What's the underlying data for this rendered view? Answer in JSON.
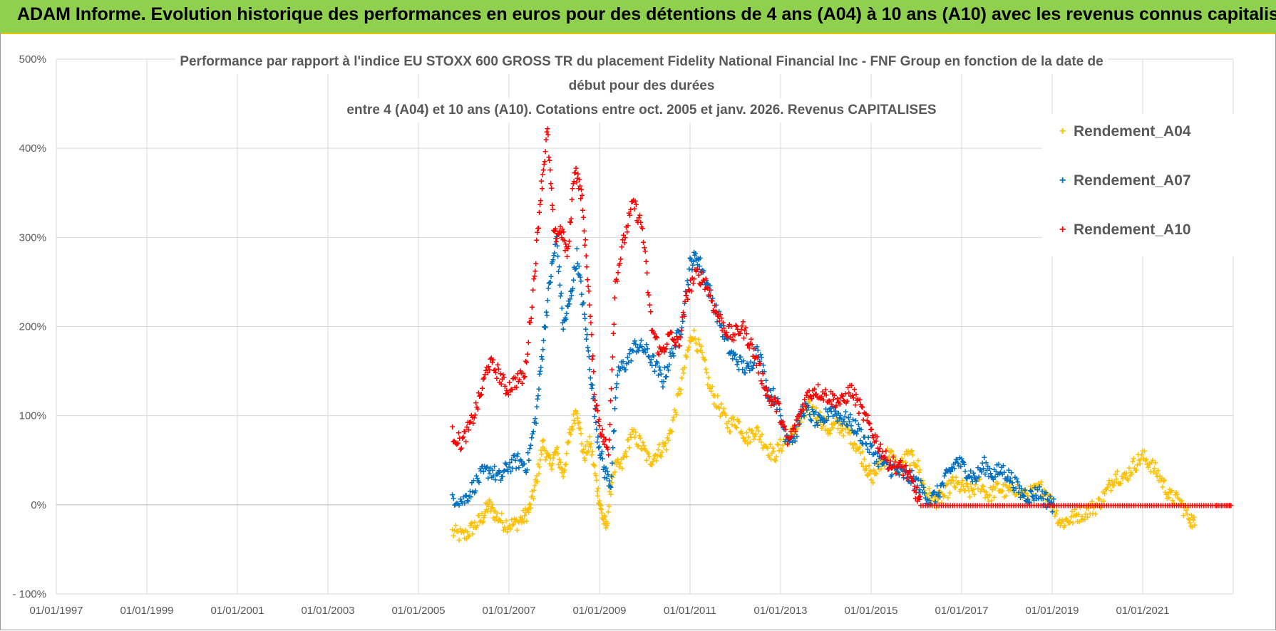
{
  "header": {
    "title": "ADAM Informe. Evolution historique des performances en euros pour des détentions de 4 ans (A04) à 10 ans (A10) avec les revenus connus capitalisés"
  },
  "chart_data": {
    "type": "scatter",
    "title_lines": [
      "Performance par rapport à l'indice EU STOXX 600 GROSS TR  du placement Fidelity National Financial Inc - FNF Group en fonction de la date de",
      "début pour des durées",
      "entre 4 (A04) et 10 ans (A10). Cotations entre oct. 2005 et janv. 2026. Revenus CAPITALISES"
    ],
    "xlabel": "",
    "ylabel": "",
    "xlim": [
      1997.0,
      2023.0
    ],
    "ylim": [
      -100,
      500
    ],
    "x_ticks": [
      "01/01/1997",
      "01/01/1999",
      "01/01/2001",
      "01/01/2003",
      "01/01/2005",
      "01/01/2007",
      "01/01/2009",
      "01/01/2011",
      "01/01/2013",
      "01/01/2015",
      "01/01/2017",
      "01/01/2019",
      "01/01/2021"
    ],
    "x_tick_years": [
      1997,
      1999,
      2001,
      2003,
      2005,
      2007,
      2009,
      2011,
      2013,
      2015,
      2017,
      2019,
      2021
    ],
    "y_ticks": [
      "- 100%",
      "0%",
      "100%",
      "200%",
      "300%",
      "400%",
      "500%"
    ],
    "y_tick_values": [
      -100,
      0,
      100,
      200,
      300,
      400,
      500
    ],
    "marker": "+",
    "legend_position": "top-right",
    "series": [
      {
        "name": "Rendement_A04",
        "color": "#ffc000",
        "points": [
          [
            2005.75,
            -30
          ],
          [
            2006.0,
            -35
          ],
          [
            2006.2,
            -25
          ],
          [
            2006.4,
            -15
          ],
          [
            2006.55,
            0
          ],
          [
            2006.7,
            -10
          ],
          [
            2006.9,
            -20
          ],
          [
            2007.1,
            -22
          ],
          [
            2007.3,
            -15
          ],
          [
            2007.45,
            -5
          ],
          [
            2007.6,
            25
          ],
          [
            2007.75,
            70
          ],
          [
            2007.9,
            45
          ],
          [
            2008.05,
            60
          ],
          [
            2008.2,
            35
          ],
          [
            2008.35,
            80
          ],
          [
            2008.5,
            110
          ],
          [
            2008.65,
            55
          ],
          [
            2008.8,
            70
          ],
          [
            2008.95,
            20
          ],
          [
            2009.05,
            -10
          ],
          [
            2009.15,
            -25
          ],
          [
            2009.3,
            40
          ],
          [
            2009.5,
            45
          ],
          [
            2009.7,
            80
          ],
          [
            2009.9,
            70
          ],
          [
            2010.1,
            50
          ],
          [
            2010.3,
            60
          ],
          [
            2010.5,
            70
          ],
          [
            2010.7,
            110
          ],
          [
            2010.9,
            160
          ],
          [
            2011.05,
            195
          ],
          [
            2011.25,
            170
          ],
          [
            2011.45,
            130
          ],
          [
            2011.65,
            110
          ],
          [
            2011.85,
            90
          ],
          [
            2012.05,
            95
          ],
          [
            2012.25,
            75
          ],
          [
            2012.45,
            85
          ],
          [
            2012.65,
            70
          ],
          [
            2012.85,
            55
          ],
          [
            2013.05,
            70
          ],
          [
            2013.25,
            80
          ],
          [
            2013.45,
            95
          ],
          [
            2013.65,
            110
          ],
          [
            2013.85,
            100
          ],
          [
            2014.05,
            85
          ],
          [
            2014.25,
            90
          ],
          [
            2014.45,
            85
          ],
          [
            2014.65,
            70
          ],
          [
            2014.85,
            50
          ],
          [
            2015.0,
            30
          ],
          [
            2015.2,
            45
          ],
          [
            2015.4,
            60
          ],
          [
            2015.6,
            40
          ],
          [
            2015.8,
            55
          ],
          [
            2016.0,
            50
          ],
          [
            2016.2,
            15
          ],
          [
            2016.4,
            5
          ],
          [
            2016.6,
            10
          ],
          [
            2016.8,
            25
          ],
          [
            2017.0,
            20
          ],
          [
            2017.2,
            15
          ],
          [
            2017.4,
            25
          ],
          [
            2017.6,
            10
          ],
          [
            2017.8,
            20
          ],
          [
            2018.0,
            15
          ],
          [
            2018.2,
            20
          ],
          [
            2018.4,
            10
          ],
          [
            2018.6,
            15
          ],
          [
            2018.8,
            20
          ],
          [
            2019.0,
            0
          ],
          [
            2019.2,
            -20
          ],
          [
            2019.4,
            -15
          ],
          [
            2019.6,
            -10
          ],
          [
            2019.8,
            -5
          ],
          [
            2020.0,
            0
          ],
          [
            2020.2,
            15
          ],
          [
            2020.4,
            35
          ],
          [
            2020.6,
            30
          ],
          [
            2020.8,
            45
          ],
          [
            2021.0,
            55
          ],
          [
            2021.2,
            45
          ],
          [
            2021.4,
            30
          ],
          [
            2021.6,
            10
          ],
          [
            2021.8,
            5
          ],
          [
            2022.0,
            -10
          ],
          [
            2022.15,
            -22
          ]
        ]
      },
      {
        "name": "Rendement_A07",
        "color": "#0070c0",
        "points": [
          [
            2005.75,
            10
          ],
          [
            2006.0,
            5
          ],
          [
            2006.2,
            20
          ],
          [
            2006.4,
            35
          ],
          [
            2006.6,
            40
          ],
          [
            2006.8,
            30
          ],
          [
            2007.0,
            45
          ],
          [
            2007.2,
            50
          ],
          [
            2007.4,
            45
          ],
          [
            2007.6,
            100
          ],
          [
            2007.75,
            180
          ],
          [
            2007.9,
            250
          ],
          [
            2008.05,
            300
          ],
          [
            2008.2,
            200
          ],
          [
            2008.35,
            230
          ],
          [
            2008.5,
            280
          ],
          [
            2008.65,
            220
          ],
          [
            2008.8,
            150
          ],
          [
            2008.95,
            80
          ],
          [
            2009.1,
            40
          ],
          [
            2009.25,
            25
          ],
          [
            2009.4,
            150
          ],
          [
            2009.6,
            160
          ],
          [
            2009.8,
            180
          ],
          [
            2010.0,
            175
          ],
          [
            2010.2,
            160
          ],
          [
            2010.4,
            140
          ],
          [
            2010.6,
            170
          ],
          [
            2010.8,
            200
          ],
          [
            2011.0,
            270
          ],
          [
            2011.15,
            280
          ],
          [
            2011.3,
            260
          ],
          [
            2011.5,
            230
          ],
          [
            2011.7,
            200
          ],
          [
            2011.9,
            170
          ],
          [
            2012.1,
            160
          ],
          [
            2012.3,
            150
          ],
          [
            2012.5,
            180
          ],
          [
            2012.7,
            130
          ],
          [
            2012.9,
            120
          ],
          [
            2013.1,
            80
          ],
          [
            2013.3,
            75
          ],
          [
            2013.5,
            110
          ],
          [
            2013.7,
            100
          ],
          [
            2013.9,
            90
          ],
          [
            2014.1,
            110
          ],
          [
            2014.3,
            100
          ],
          [
            2014.5,
            95
          ],
          [
            2014.7,
            85
          ],
          [
            2014.9,
            70
          ],
          [
            2015.1,
            55
          ],
          [
            2015.3,
            45
          ],
          [
            2015.5,
            40
          ],
          [
            2015.7,
            35
          ],
          [
            2015.9,
            30
          ],
          [
            2016.1,
            20
          ],
          [
            2016.3,
            5
          ],
          [
            2016.5,
            15
          ],
          [
            2016.7,
            35
          ],
          [
            2016.9,
            50
          ],
          [
            2017.1,
            40
          ],
          [
            2017.3,
            30
          ],
          [
            2017.5,
            45
          ],
          [
            2017.7,
            35
          ],
          [
            2017.9,
            40
          ],
          [
            2018.1,
            30
          ],
          [
            2018.3,
            15
          ],
          [
            2018.5,
            10
          ],
          [
            2018.7,
            15
          ],
          [
            2018.9,
            5
          ],
          [
            2019.05,
            0
          ]
        ]
      },
      {
        "name": "Rendement_A10",
        "color": "#ff0000",
        "points": [
          [
            2005.75,
            80
          ],
          [
            2005.95,
            70
          ],
          [
            2006.15,
            90
          ],
          [
            2006.35,
            120
          ],
          [
            2006.55,
            160
          ],
          [
            2006.75,
            150
          ],
          [
            2006.95,
            130
          ],
          [
            2007.15,
            140
          ],
          [
            2007.35,
            145
          ],
          [
            2007.55,
            250
          ],
          [
            2007.7,
            350
          ],
          [
            2007.85,
            420
          ],
          [
            2008.0,
            300
          ],
          [
            2008.15,
            310
          ],
          [
            2008.3,
            280
          ],
          [
            2008.45,
            380
          ],
          [
            2008.6,
            350
          ],
          [
            2008.75,
            250
          ],
          [
            2008.9,
            120
          ],
          [
            2009.05,
            80
          ],
          [
            2009.2,
            60
          ],
          [
            2009.35,
            250
          ],
          [
            2009.55,
            300
          ],
          [
            2009.75,
            340
          ],
          [
            2009.95,
            310
          ],
          [
            2010.15,
            200
          ],
          [
            2010.35,
            170
          ],
          [
            2010.55,
            190
          ],
          [
            2010.75,
            180
          ],
          [
            2010.95,
            240
          ],
          [
            2011.15,
            260
          ],
          [
            2011.35,
            250
          ],
          [
            2011.55,
            220
          ],
          [
            2011.75,
            200
          ],
          [
            2011.95,
            190
          ],
          [
            2012.15,
            200
          ],
          [
            2012.35,
            180
          ],
          [
            2012.55,
            150
          ],
          [
            2012.75,
            120
          ],
          [
            2012.95,
            110
          ],
          [
            2013.15,
            70
          ],
          [
            2013.35,
            90
          ],
          [
            2013.55,
            120
          ],
          [
            2013.75,
            130
          ],
          [
            2013.95,
            125
          ],
          [
            2014.15,
            120
          ],
          [
            2014.35,
            115
          ],
          [
            2014.55,
            130
          ],
          [
            2014.75,
            110
          ],
          [
            2014.95,
            90
          ],
          [
            2015.15,
            70
          ],
          [
            2015.35,
            50
          ],
          [
            2015.55,
            45
          ],
          [
            2015.75,
            40
          ],
          [
            2015.95,
            20
          ],
          [
            2016.1,
            0
          ],
          [
            2016.6,
            0
          ],
          [
            2017.1,
            0
          ],
          [
            2017.6,
            0
          ],
          [
            2018.1,
            0
          ],
          [
            2018.6,
            0
          ],
          [
            2019.1,
            0
          ],
          [
            2019.6,
            0
          ],
          [
            2020.1,
            0
          ],
          [
            2020.6,
            0
          ],
          [
            2021.1,
            0
          ],
          [
            2021.6,
            0
          ],
          [
            2022.1,
            0
          ],
          [
            2022.6,
            0
          ],
          [
            2022.95,
            0
          ]
        ]
      }
    ]
  }
}
